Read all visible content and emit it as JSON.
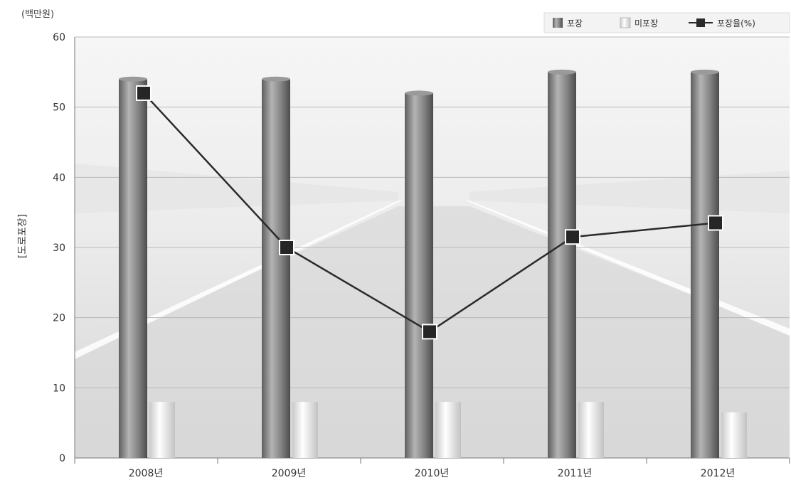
{
  "chart_data": {
    "type": "bar",
    "unit_label": "(백만원)",
    "ylabel": "[도로포장]",
    "xlabel": "",
    "ylim": [
      0,
      60
    ],
    "yticks": [
      0,
      10,
      20,
      30,
      40,
      50,
      60
    ],
    "categories": [
      "2008년",
      "2009년",
      "2010년",
      "2011년",
      "2012년"
    ],
    "series": [
      {
        "name": "포장",
        "kind": "bar",
        "values": [
          54,
          54,
          52,
          55,
          55
        ]
      },
      {
        "name": "미포장",
        "kind": "bar",
        "values": [
          8,
          8,
          8,
          8,
          6.5
        ]
      },
      {
        "name": "포장율(%)",
        "kind": "line",
        "values": [
          52,
          30,
          18,
          31.5,
          33.5
        ]
      }
    ],
    "legend": {
      "position": "top-right",
      "labels": [
        "포장",
        "미포장",
        "포장율(%)"
      ]
    },
    "grid": true,
    "colors": {
      "paved": "#8a8a8a",
      "unpaved": "#e6e6e6",
      "line": "#2a2a2a"
    }
  }
}
